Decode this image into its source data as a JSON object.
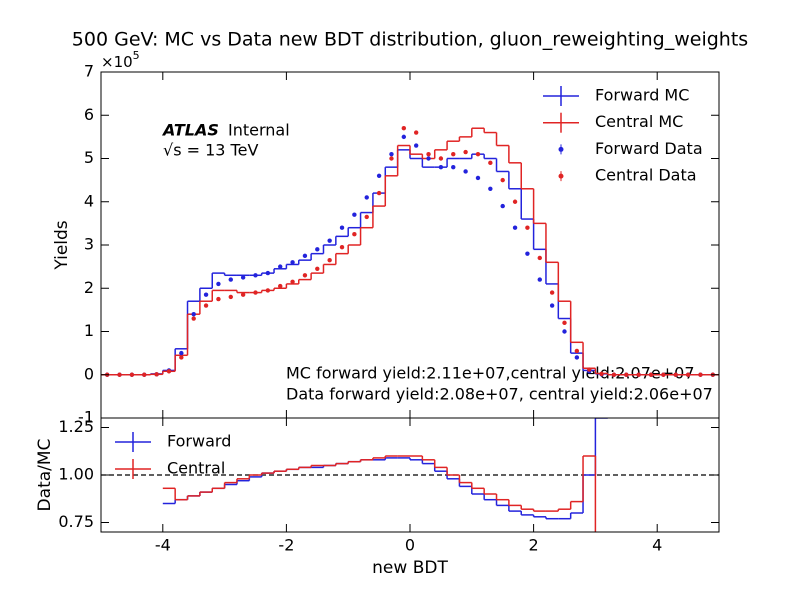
{
  "chart_data": [
    {
      "type": "histogram",
      "title": "500 GeV: MC vs Data new BDT distribution, gluon_reweighting_weights",
      "ylabel": "Yields",
      "y_offset_label": {
        "base": "×10",
        "exponent": "5"
      },
      "atlas_label": "ATLAS",
      "atlas_status": "Internal",
      "energy_label": "√s = 13 TeV",
      "annotations": [
        "MC forward yield:2.11e+07,central yield:2.07e+07",
        "Data forward yield:2.08e+07, central yield:2.06e+07"
      ],
      "legend": "upper right",
      "xlim": [
        -5,
        5
      ],
      "ylim": [
        -1,
        7
      ],
      "yticks": [
        -1,
        0,
        1,
        2,
        3,
        4,
        5,
        6,
        7
      ],
      "bins": [
        -5,
        -4.8,
        -4.6,
        -4.4,
        -4.2,
        -4,
        -3.8,
        -3.6,
        -3.4,
        -3.2,
        -3,
        -2.8,
        -2.6,
        -2.4,
        -2.2,
        -2,
        -1.8,
        -1.6,
        -1.4,
        -1.2,
        -1,
        -0.8,
        -0.6,
        -0.4,
        -0.2,
        0,
        0.2,
        0.4,
        0.6,
        0.8,
        1,
        1.2,
        1.4,
        1.6,
        1.8,
        2,
        2.2,
        2.4,
        2.6,
        2.8,
        3,
        3.2,
        3.4,
        3.6,
        3.8,
        4,
        4.2,
        4.4,
        4.6,
        4.8,
        5
      ],
      "series": [
        {
          "name": "Forward MC",
          "color": "#2323dc",
          "style": "step",
          "values": [
            0,
            0,
            0,
            0,
            0.02,
            0.1,
            0.6,
            1.7,
            2.0,
            2.35,
            2.3,
            2.3,
            2.3,
            2.35,
            2.45,
            2.55,
            2.65,
            2.8,
            3.0,
            3.2,
            3.4,
            3.75,
            4.2,
            4.8,
            5.2,
            5.0,
            4.8,
            4.8,
            5.0,
            5.0,
            5.1,
            5.0,
            4.7,
            4.3,
            3.6,
            2.9,
            2.1,
            1.3,
            0.5,
            0.1,
            0.02,
            0,
            0,
            0,
            0,
            0,
            0,
            0,
            0,
            0
          ]
        },
        {
          "name": "Central MC",
          "color": "#e02424",
          "style": "step",
          "values": [
            0,
            0,
            0,
            0,
            0.01,
            0.08,
            0.45,
            1.4,
            1.7,
            1.95,
            1.95,
            1.9,
            1.9,
            1.95,
            2.0,
            2.1,
            2.2,
            2.35,
            2.55,
            2.8,
            3.0,
            3.4,
            3.9,
            4.6,
            5.3,
            5.1,
            5.0,
            5.2,
            5.4,
            5.5,
            5.7,
            5.6,
            5.3,
            4.9,
            4.3,
            3.5,
            2.6,
            1.7,
            0.75,
            0.15,
            0.03,
            0,
            0,
            0,
            0,
            0,
            0,
            0,
            0,
            0
          ]
        },
        {
          "name": "Forward Data",
          "color": "#2323dc",
          "style": "points",
          "values": [
            0,
            0,
            0,
            0,
            0.01,
            0.1,
            0.5,
            1.4,
            1.85,
            2.1,
            2.2,
            2.25,
            2.3,
            2.35,
            2.5,
            2.6,
            2.75,
            2.9,
            3.1,
            3.4,
            3.7,
            4.1,
            4.6,
            5.1,
            5.5,
            5.3,
            5.0,
            4.8,
            4.8,
            4.7,
            4.55,
            4.3,
            3.9,
            3.4,
            2.8,
            2.2,
            1.6,
            1.0,
            0.4,
            0.08,
            0.01,
            0,
            0,
            0,
            0,
            0,
            0,
            0,
            0,
            0
          ]
        },
        {
          "name": "Central Data",
          "color": "#e02424",
          "style": "points",
          "values": [
            0,
            0,
            0,
            0,
            0.01,
            0.08,
            0.4,
            1.3,
            1.6,
            1.75,
            1.8,
            1.85,
            1.9,
            1.95,
            2.05,
            2.15,
            2.3,
            2.45,
            2.65,
            2.95,
            3.25,
            3.65,
            4.2,
            5.0,
            5.7,
            5.6,
            5.1,
            5.0,
            5.1,
            5.15,
            5.1,
            4.9,
            4.5,
            4.0,
            3.4,
            2.7,
            1.9,
            1.2,
            0.55,
            0.12,
            0.02,
            0,
            0,
            0,
            0,
            0,
            0,
            0,
            0,
            0
          ]
        }
      ]
    },
    {
      "type": "histogram",
      "xlabel": "new BDT",
      "ylabel": "Data/MC",
      "legend": "upper left",
      "xlim": [
        -5,
        5
      ],
      "xticks": [
        -4,
        -2,
        0,
        2,
        4
      ],
      "ylim": [
        0.7,
        1.3
      ],
      "yticks": [
        {
          "value": 0.75,
          "label": "0.75"
        },
        {
          "value": 1.0,
          "label": "1.00"
        },
        {
          "value": 1.25,
          "label": "1.25"
        }
      ],
      "reference_line": 1,
      "bins": [
        -5,
        -4.8,
        -4.6,
        -4.4,
        -4.2,
        -4,
        -3.8,
        -3.6,
        -3.4,
        -3.2,
        -3,
        -2.8,
        -2.6,
        -2.4,
        -2.2,
        -2,
        -1.8,
        -1.6,
        -1.4,
        -1.2,
        -1,
        -0.8,
        -0.6,
        -0.4,
        -0.2,
        0,
        0.2,
        0.4,
        0.6,
        0.8,
        1,
        1.2,
        1.4,
        1.6,
        1.8,
        2,
        2.2,
        2.4,
        2.6,
        2.8,
        3,
        3.2,
        3.4,
        3.6,
        3.8,
        4,
        4.2,
        4.4,
        4.6,
        4.8,
        5
      ],
      "series": [
        {
          "name": "Forward",
          "color": "#2323dc",
          "style": "step",
          "values": [
            null,
            null,
            null,
            null,
            null,
            0.85,
            0.87,
            0.89,
            0.91,
            0.93,
            0.95,
            0.97,
            0.99,
            1.01,
            1.02,
            1.03,
            1.04,
            1.04,
            1.05,
            1.06,
            1.07,
            1.08,
            1.08,
            1.09,
            1.09,
            1.08,
            1.06,
            1.02,
            0.98,
            0.94,
            0.9,
            0.87,
            0.84,
            0.81,
            0.79,
            0.78,
            0.77,
            0.77,
            0.8,
            1.0,
            1.3,
            null,
            null,
            null,
            null,
            null,
            null,
            null,
            null,
            null
          ]
        },
        {
          "name": "Central",
          "color": "#e02424",
          "style": "step",
          "values": [
            null,
            null,
            null,
            null,
            null,
            0.93,
            0.87,
            0.89,
            0.91,
            0.93,
            0.96,
            0.98,
            1.0,
            1.01,
            1.02,
            1.03,
            1.04,
            1.05,
            1.05,
            1.06,
            1.07,
            1.08,
            1.09,
            1.1,
            1.1,
            1.1,
            1.08,
            1.04,
            1.0,
            0.96,
            0.93,
            0.9,
            0.87,
            0.84,
            0.82,
            0.81,
            0.81,
            0.82,
            0.86,
            1.1,
            0.6,
            null,
            null,
            null,
            null,
            null,
            null,
            null,
            null,
            null
          ]
        }
      ]
    }
  ]
}
